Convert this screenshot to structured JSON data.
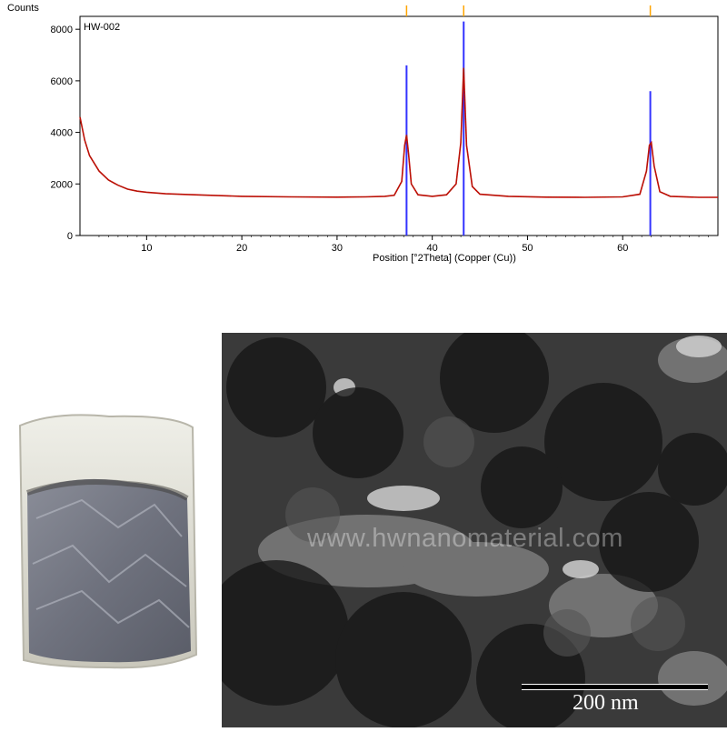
{
  "chart_data": {
    "type": "line",
    "title": "HW-002",
    "ylabel": "Counts",
    "xlabel": "Position [°2Theta] (Copper (Cu))",
    "xlim": [
      3,
      70
    ],
    "ylim": [
      0,
      8500
    ],
    "x_ticks": [
      10,
      20,
      30,
      40,
      50,
      60
    ],
    "y_ticks": [
      0,
      2000,
      4000,
      6000,
      8000
    ],
    "series": [
      {
        "color": "#cc0000",
        "x": [
          3,
          3.5,
          4,
          5,
          6,
          7,
          8,
          9,
          10,
          12,
          15,
          20,
          25,
          30,
          33,
          35,
          36,
          36.8,
          37.1,
          37.3,
          37.5,
          37.8,
          38.5,
          40,
          41.5,
          42.5,
          43.0,
          43.3,
          43.6,
          44.2,
          45,
          48,
          52,
          56,
          60,
          61.8,
          62.5,
          62.8,
          63.0,
          63.3,
          63.9,
          65,
          68,
          70
        ],
        "y": [
          4600,
          3700,
          3100,
          2500,
          2150,
          1950,
          1800,
          1720,
          1680,
          1620,
          1580,
          1520,
          1500,
          1490,
          1500,
          1520,
          1560,
          2100,
          3500,
          3900,
          3200,
          2000,
          1580,
          1520,
          1580,
          2000,
          3600,
          6500,
          3500,
          1900,
          1600,
          1520,
          1490,
          1480,
          1500,
          1600,
          2500,
          3500,
          3600,
          2700,
          1700,
          1520,
          1480,
          1480
        ]
      }
    ],
    "reference_peaks": {
      "color": "#3333ff",
      "x": [
        37.3,
        43.3,
        62.9
      ],
      "y": [
        6600,
        8300,
        5600
      ]
    },
    "markers": {
      "color": "#ffa500",
      "x": [
        37.3,
        43.3,
        62.9
      ]
    }
  },
  "tem_image": {
    "watermark": "www.hwnanomaterial.com",
    "scale_label": "200 nm"
  }
}
